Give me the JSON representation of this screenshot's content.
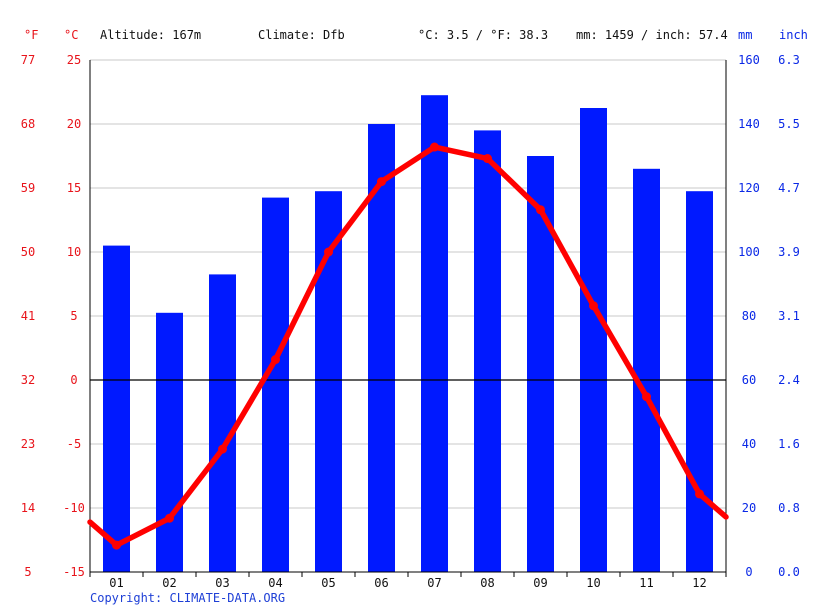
{
  "header": {
    "unit_f": "°F",
    "unit_c": "°C",
    "altitude": "Altitude: 167m",
    "climate": "Climate: Dfb",
    "temp_avg": "°C: 3.5 / °F: 38.3",
    "precip_total": "mm: 1459 / inch: 57.4",
    "unit_mm": "mm",
    "unit_inch": "inch"
  },
  "copyright": "Copyright: CLIMATE-DATA.ORG",
  "colors": {
    "temperature": "#ff0000",
    "precipitation": "#0019ff",
    "left_axis": "#e8141b",
    "right_axis": "#0a28e6"
  },
  "chart_data": {
    "type": "bar",
    "categories": [
      "01",
      "02",
      "03",
      "04",
      "05",
      "06",
      "07",
      "08",
      "09",
      "10",
      "11",
      "12"
    ],
    "series": [
      {
        "type": "bar",
        "axis": "mm",
        "values": [
          102,
          81,
          93,
          117,
          119,
          140,
          149,
          138,
          130,
          145,
          126,
          119
        ]
      },
      {
        "type": "line",
        "axis": "C",
        "values": [
          -12.9,
          -10.8,
          -5.4,
          1.6,
          10,
          15.5,
          18.2,
          17.3,
          13.3,
          5.8,
          -1.3,
          -8.9
        ],
        "edge_start": -11.1,
        "edge_end": -10.7
      }
    ],
    "ylim_c": [
      -15,
      25
    ],
    "ylim_mm": [
      0,
      160
    ],
    "yticks_c": [
      "-15",
      "-10",
      "-5",
      "0",
      "5",
      "10",
      "15",
      "20",
      "25"
    ],
    "yticks_f": [
      "5",
      "14",
      "23",
      "32",
      "41",
      "50",
      "59",
      "68",
      "77"
    ],
    "yticks_mm": [
      "0",
      "20",
      "40",
      "60",
      "80",
      "100",
      "120",
      "140",
      "160"
    ],
    "yticks_inch": [
      "0.0",
      "0.8",
      "1.6",
      "2.4",
      "3.1",
      "3.9",
      "4.7",
      "5.5",
      "6.3"
    ],
    "grid": true
  }
}
